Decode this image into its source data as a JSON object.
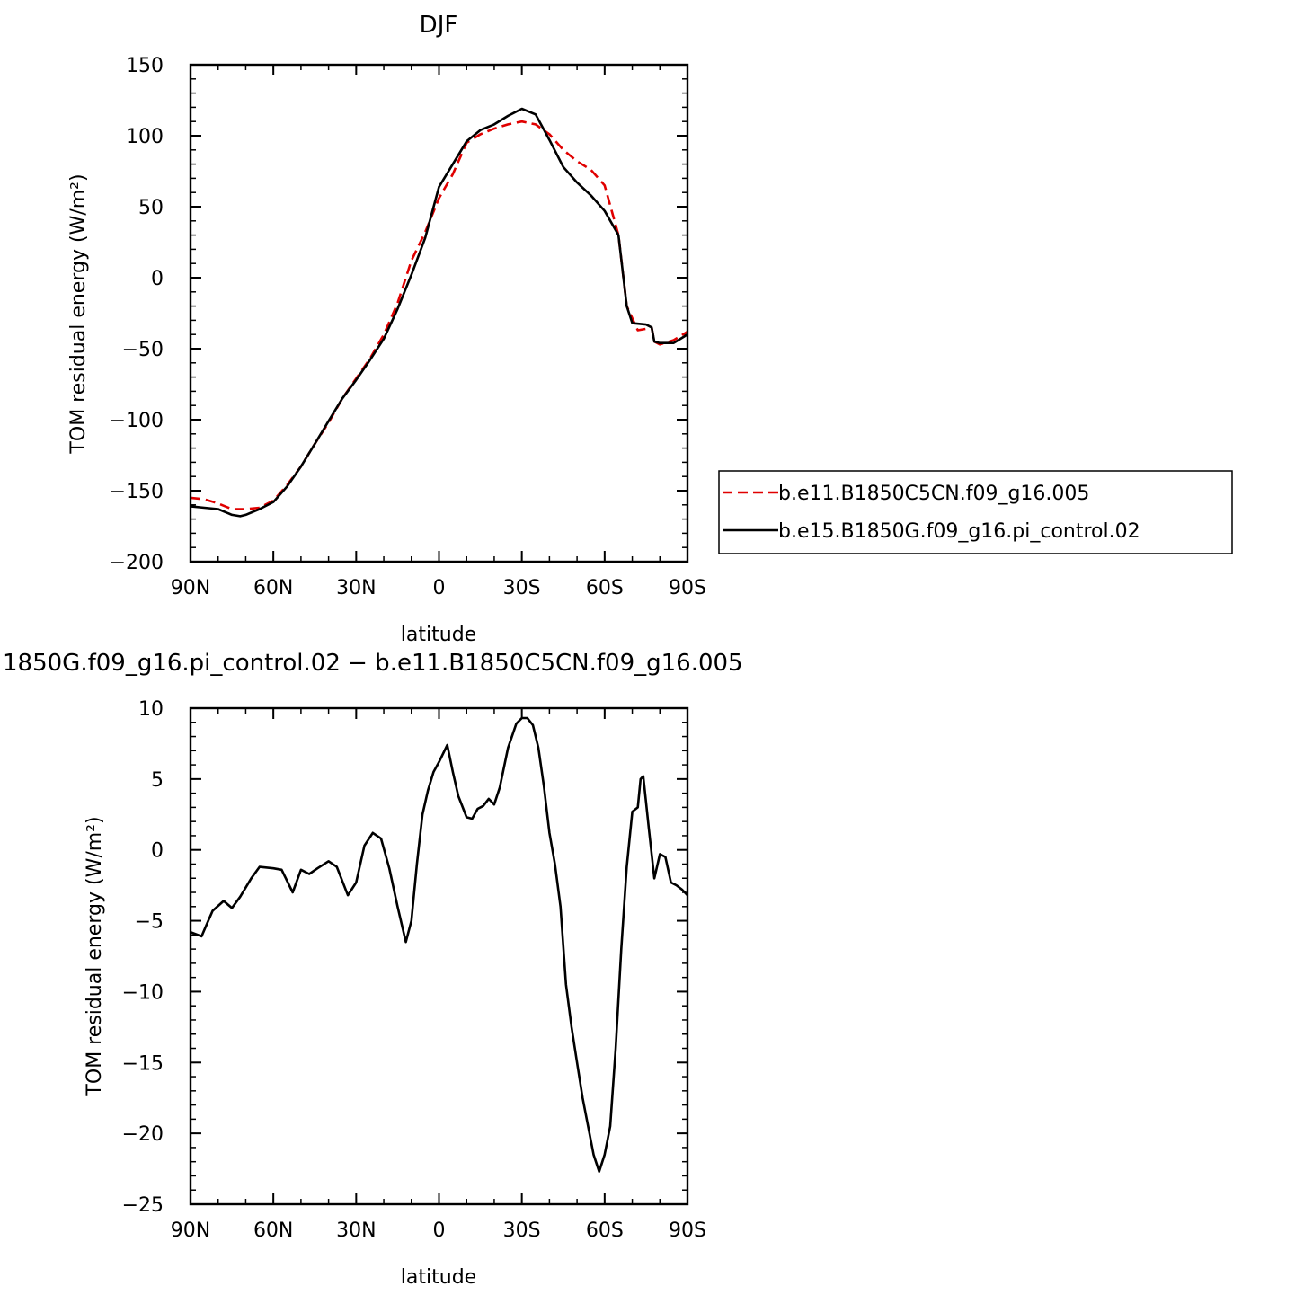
{
  "colors": {
    "series_dashed": "#e00000",
    "series_solid": "#000000",
    "axes": "#000000",
    "background": "#ffffff"
  },
  "chart_data": [
    {
      "type": "line",
      "title": "DJF",
      "xlabel": "latitude",
      "ylabel": "TOM residual energy (W/m²)",
      "xlim": [
        -90,
        90
      ],
      "ylim": [
        -200,
        150
      ],
      "xticks": [
        -90,
        -60,
        -30,
        0,
        30,
        60,
        90
      ],
      "xtick_labels": [
        "90N",
        "60N",
        "30N",
        "0",
        "30S",
        "60S",
        "90S"
      ],
      "yticks": [
        150,
        100,
        50,
        0,
        -50,
        -100,
        -150,
        -200
      ],
      "ytick_labels": [
        "150",
        "100",
        "50",
        "0",
        "−50",
        "−100",
        "−150",
        "−200"
      ],
      "grid": false,
      "legend_position": "right",
      "series": [
        {
          "name": "b.e11.B1850C5CN.f09_g16.005",
          "style": "dashed",
          "color": "#e00000",
          "points": [
            [
              -90,
              -155
            ],
            [
              -85,
              -156
            ],
            [
              -80,
              -159
            ],
            [
              -75,
              -163
            ],
            [
              -70,
              -163
            ],
            [
              -65,
              -162
            ],
            [
              -60,
              -157
            ],
            [
              -55,
              -146
            ],
            [
              -50,
              -133
            ],
            [
              -45,
              -117
            ],
            [
              -40,
              -102
            ],
            [
              -35,
              -85
            ],
            [
              -30,
              -71
            ],
            [
              -25,
              -57
            ],
            [
              -20,
              -40
            ],
            [
              -15,
              -18
            ],
            [
              -10,
              12
            ],
            [
              -5,
              32
            ],
            [
              0,
              56
            ],
            [
              5,
              73
            ],
            [
              10,
              95
            ],
            [
              15,
              101
            ],
            [
              20,
              105
            ],
            [
              25,
              108
            ],
            [
              30,
              110
            ],
            [
              35,
              108
            ],
            [
              40,
              101
            ],
            [
              45,
              90
            ],
            [
              50,
              82
            ],
            [
              55,
              76
            ],
            [
              60,
              65
            ],
            [
              65,
              30
            ],
            [
              68,
              -20
            ],
            [
              72,
              -37
            ],
            [
              75,
              -36
            ],
            [
              77,
              -35
            ],
            [
              78,
              -45
            ],
            [
              80,
              -47
            ],
            [
              85,
              -44
            ],
            [
              90,
              -38
            ]
          ]
        },
        {
          "name": "b.e15.B1850G.f09_g16.pi_control.02",
          "style": "solid",
          "color": "#000000",
          "points": [
            [
              -90,
              -161
            ],
            [
              -85,
              -162
            ],
            [
              -80,
              -163
            ],
            [
              -75,
              -167
            ],
            [
              -72,
              -168
            ],
            [
              -70,
              -167
            ],
            [
              -65,
              -163
            ],
            [
              -60,
              -158
            ],
            [
              -55,
              -147
            ],
            [
              -50,
              -133
            ],
            [
              -45,
              -117
            ],
            [
              -40,
              -101
            ],
            [
              -35,
              -85
            ],
            [
              -30,
              -72
            ],
            [
              -25,
              -58
            ],
            [
              -20,
              -43
            ],
            [
              -15,
              -22
            ],
            [
              -10,
              2
            ],
            [
              -5,
              28
            ],
            [
              0,
              64
            ],
            [
              5,
              80
            ],
            [
              10,
              96
            ],
            [
              15,
              104
            ],
            [
              20,
              108
            ],
            [
              25,
              114
            ],
            [
              30,
              119
            ],
            [
              35,
              115
            ],
            [
              40,
              97
            ],
            [
              45,
              78
            ],
            [
              50,
              67
            ],
            [
              55,
              58
            ],
            [
              60,
              47
            ],
            [
              65,
              30
            ],
            [
              68,
              -20
            ],
            [
              70,
              -32
            ],
            [
              75,
              -33
            ],
            [
              77,
              -35
            ],
            [
              78,
              -45
            ],
            [
              80,
              -46
            ],
            [
              85,
              -46
            ],
            [
              90,
              -40
            ]
          ]
        }
      ]
    },
    {
      "type": "line",
      "title": "1850G.f09_g16.pi_control.02 − b.e11.B1850C5CN.f09_g16.005",
      "xlabel": "latitude",
      "ylabel": "TOM residual energy (W/m²)",
      "xlim": [
        -90,
        90
      ],
      "ylim": [
        -25,
        10
      ],
      "xticks": [
        -90,
        -60,
        -30,
        0,
        30,
        60,
        90
      ],
      "xtick_labels": [
        "90N",
        "60N",
        "30N",
        "0",
        "30S",
        "60S",
        "90S"
      ],
      "yticks": [
        10,
        5,
        0,
        -5,
        -10,
        -15,
        -20,
        -25
      ],
      "ytick_labels": [
        "10",
        "5",
        "0",
        "−5",
        "−10",
        "−15",
        "−20",
        "−25"
      ],
      "grid": false,
      "series": [
        {
          "style": "solid",
          "color": "#000000",
          "points": [
            [
              -90,
              -5.8
            ],
            [
              -86,
              -6.1
            ],
            [
              -84,
              -5.2
            ],
            [
              -82,
              -4.3
            ],
            [
              -78,
              -3.6
            ],
            [
              -75,
              -4.1
            ],
            [
              -72,
              -3.3
            ],
            [
              -68,
              -2.0
            ],
            [
              -65,
              -1.2
            ],
            [
              -60,
              -1.3
            ],
            [
              -57,
              -1.4
            ],
            [
              -53,
              -3.0
            ],
            [
              -50,
              -1.4
            ],
            [
              -47,
              -1.7
            ],
            [
              -44,
              -1.3
            ],
            [
              -40,
              -0.8
            ],
            [
              -37,
              -1.2
            ],
            [
              -33,
              -3.2
            ],
            [
              -30,
              -2.3
            ],
            [
              -27,
              0.3
            ],
            [
              -24,
              1.2
            ],
            [
              -21,
              0.8
            ],
            [
              -18,
              -1.3
            ],
            [
              -15,
              -4.0
            ],
            [
              -12,
              -6.5
            ],
            [
              -10,
              -5.0
            ],
            [
              -8,
              -1.0
            ],
            [
              -6,
              2.5
            ],
            [
              -4,
              4.2
            ],
            [
              -2,
              5.5
            ],
            [
              0,
              6.2
            ],
            [
              3,
              7.4
            ],
            [
              5,
              5.5
            ],
            [
              7,
              3.8
            ],
            [
              10,
              2.3
            ],
            [
              12,
              2.2
            ],
            [
              14,
              2.9
            ],
            [
              16,
              3.1
            ],
            [
              18,
              3.6
            ],
            [
              20,
              3.2
            ],
            [
              22,
              4.4
            ],
            [
              25,
              7.2
            ],
            [
              28,
              8.9
            ],
            [
              30,
              9.3
            ],
            [
              32,
              9.3
            ],
            [
              34,
              8.8
            ],
            [
              36,
              7.2
            ],
            [
              38,
              4.5
            ],
            [
              40,
              1.2
            ],
            [
              42,
              -1.0
            ],
            [
              44,
              -4.0
            ],
            [
              46,
              -9.5
            ],
            [
              48,
              -12.5
            ],
            [
              50,
              -15.0
            ],
            [
              52,
              -17.5
            ],
            [
              54,
              -19.5
            ],
            [
              56,
              -21.5
            ],
            [
              58,
              -22.7
            ],
            [
              60,
              -21.5
            ],
            [
              62,
              -19.5
            ],
            [
              64,
              -14.0
            ],
            [
              66,
              -7.0
            ],
            [
              68,
              -1.2
            ],
            [
              70,
              2.7
            ],
            [
              72,
              3.0
            ],
            [
              73,
              5.0
            ],
            [
              74,
              5.2
            ],
            [
              76,
              1.5
            ],
            [
              78,
              -2.0
            ],
            [
              80,
              -0.3
            ],
            [
              82,
              -0.5
            ],
            [
              84,
              -2.3
            ],
            [
              86,
              -2.5
            ],
            [
              88,
              -2.8
            ],
            [
              90,
              -3.2
            ]
          ]
        }
      ]
    }
  ]
}
